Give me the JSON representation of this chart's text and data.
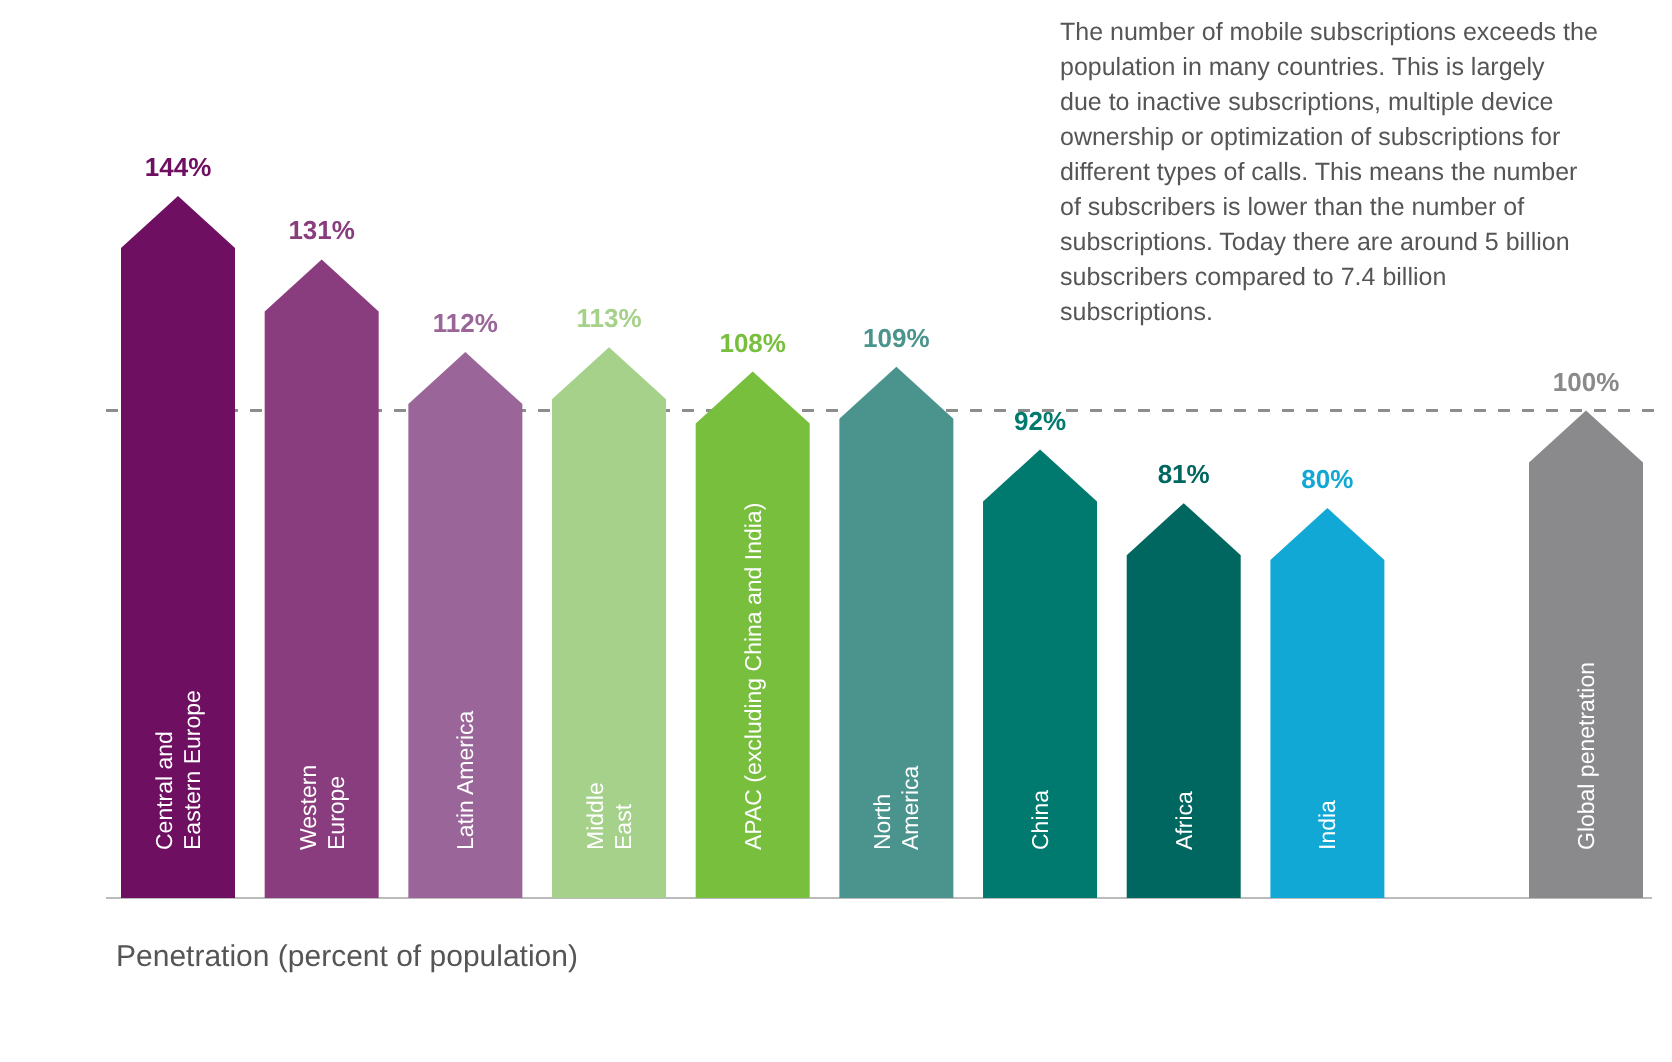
{
  "chart_data": {
    "type": "bar",
    "xlabel": "Penetration (percent of population)",
    "categories": [
      "Central and\nEastern Europe",
      "Western\nEurope",
      "Latin America",
      "Middle\nEast",
      "APAC (excluding China and India)",
      "North\nAmerica",
      "China",
      "Africa",
      "India",
      "Global penetration"
    ],
    "values": [
      144,
      131,
      112,
      113,
      108,
      109,
      92,
      81,
      80,
      100
    ],
    "value_labels": [
      "144%",
      "131%",
      "112%",
      "113%",
      "108%",
      "109%",
      "92%",
      "81%",
      "80%",
      "100%"
    ],
    "colors": [
      "#6e0f62",
      "#8a3d7e",
      "#9a6598",
      "#a5d18a",
      "#78bf3e",
      "#4a948d",
      "#00796f",
      "#006760",
      "#12a8d6",
      "#8a8a8c"
    ],
    "relative": false,
    "ref_lines": [
      {
        "axis": "y",
        "value": 100,
        "color": "#8c8c8c",
        "line_style": "dashed"
      }
    ],
    "annotations": [
      "The number of mobile subscriptions exceeds the population in many countries. This is largely due to inactive subscriptions, multiple device ownership or optimization of subscriptions for different types of calls. This means the number of subscribers is lower than the number of subscriptions. Today there are around 5 billion subscribers compared to 7.4 billion subscriptions."
    ]
  }
}
